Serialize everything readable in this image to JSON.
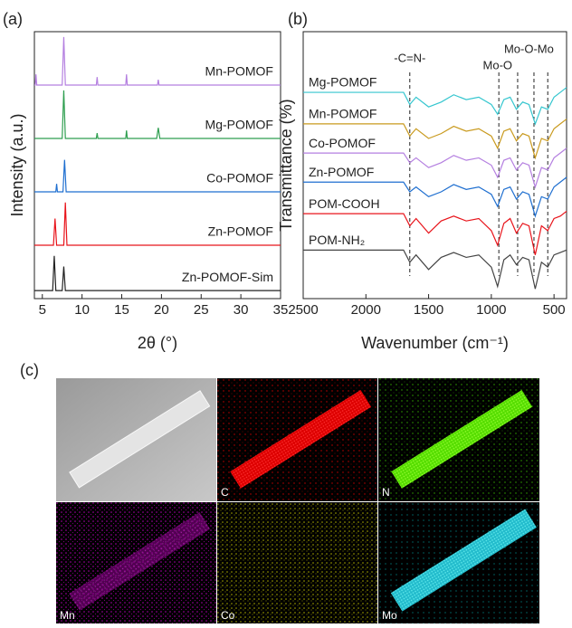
{
  "chart_data": [
    {
      "type": "line",
      "panel_label": "(a)",
      "xlabel": "2θ (°)",
      "ylabel": "Intensity (a.u.)",
      "xlim": [
        4,
        35
      ],
      "xticks": [
        5,
        10,
        15,
        20,
        25,
        30,
        35
      ],
      "ylim": [
        0,
        100
      ],
      "series": [
        {
          "name": "Zn-POMOF-Sim",
          "color": "#222222",
          "x": [
            4,
            6.3,
            6.5,
            6.7,
            7.5,
            7.7,
            7.9,
            35
          ],
          "values": [
            3,
            3,
            16,
            3,
            3,
            12,
            3,
            3
          ]
        },
        {
          "name": "Zn-POMOF",
          "color": "#e8141b",
          "x": [
            4,
            6.4,
            6.6,
            6.8,
            7.7,
            7.9,
            8.1,
            35
          ],
          "values": [
            20,
            20,
            30,
            20,
            20,
            36,
            20,
            20
          ]
        },
        {
          "name": "Co-POMOF",
          "color": "#1f6fd0",
          "x": [
            4,
            6.7,
            6.8,
            6.9,
            7.6,
            7.8,
            8,
            35
          ],
          "values": [
            40,
            40,
            43,
            40,
            40,
            52,
            40,
            40
          ]
        },
        {
          "name": "Mg-POMOF",
          "color": "#2e9e4f",
          "x": [
            4,
            7.5,
            7.7,
            7.9,
            11.8,
            11.9,
            12,
            15.5,
            15.6,
            15.7,
            19.4,
            19.6,
            19.8,
            35
          ],
          "values": [
            60,
            60,
            78,
            60,
            60,
            62,
            60,
            60,
            63,
            60,
            60,
            64,
            60,
            60
          ]
        },
        {
          "name": "Mn-POMOF",
          "color": "#b47fe0",
          "x": [
            4,
            4.1,
            4.2,
            4.3,
            7.5,
            7.7,
            7.9,
            11.8,
            11.9,
            12,
            15.5,
            15.6,
            15.7,
            19.5,
            19.6,
            19.7,
            35
          ],
          "values": [
            80,
            80,
            84,
            80,
            80,
            98,
            80,
            80,
            83,
            80,
            80,
            84,
            80,
            80,
            82,
            80,
            80
          ]
        }
      ]
    },
    {
      "type": "line",
      "panel_label": "(b)",
      "xlabel": "Wavenumber (cm⁻¹)",
      "ylabel": "Transmittance (%)",
      "xlim": [
        2500,
        400
      ],
      "xticks": [
        2500,
        2000,
        1500,
        1000,
        500
      ],
      "ylim": [
        -10,
        100
      ],
      "vlines": [
        1650,
        940,
        790,
        660,
        550
      ],
      "annotations": [
        {
          "text": "-C=N-",
          "x": 1650
        },
        {
          "text": "Mo-O",
          "x": 950
        },
        {
          "text": "Mo-O-Mo",
          "x": 700
        }
      ],
      "x": [
        2500,
        2200,
        1900,
        1700,
        1650,
        1600,
        1500,
        1400,
        1300,
        1200,
        1100,
        1000,
        950,
        900,
        850,
        800,
        750,
        700,
        650,
        600,
        550,
        500,
        450,
        400
      ],
      "series": [
        {
          "name": "POM-NH₂",
          "color": "#444444",
          "values": [
            10,
            10,
            10,
            10,
            5,
            8,
            2,
            7,
            9,
            7,
            8,
            3,
            -5,
            6,
            8,
            4,
            7,
            6,
            -6,
            5,
            3,
            8,
            9,
            10
          ]
        },
        {
          "name": "POM-COOH",
          "color": "#e8141b",
          "values": [
            25,
            25,
            25,
            25,
            20,
            23,
            17,
            22,
            24,
            22,
            23,
            18,
            12,
            21,
            23,
            17,
            21,
            20,
            8,
            20,
            18,
            23,
            24,
            26
          ]
        },
        {
          "name": "Zn-POMOF",
          "color": "#1f6fd0",
          "values": [
            38,
            38,
            38,
            38,
            34,
            36,
            32,
            34,
            37,
            35,
            36,
            33,
            28,
            35,
            36,
            31,
            34,
            33,
            24,
            32,
            31,
            36,
            38,
            40
          ]
        },
        {
          "name": "Co-POMOF",
          "color": "#b47fe0",
          "values": [
            50,
            50,
            50,
            50,
            46,
            48,
            44,
            46,
            49,
            47,
            48,
            45,
            40,
            47,
            48,
            43,
            46,
            45,
            36,
            44,
            43,
            48,
            50,
            52
          ]
        },
        {
          "name": "Mn-POMOF",
          "color": "#c99a1e",
          "values": [
            62,
            62,
            62,
            62,
            57,
            60,
            56,
            58,
            61,
            59,
            60,
            57,
            52,
            59,
            60,
            55,
            58,
            57,
            48,
            56,
            55,
            60,
            62,
            64
          ]
        },
        {
          "name": "Mg-POMOF",
          "color": "#35c6cf",
          "values": [
            75,
            75,
            75,
            75,
            70,
            73,
            69,
            71,
            74,
            72,
            73,
            70,
            66,
            72,
            73,
            68,
            71,
            70,
            62,
            69,
            68,
            73,
            75,
            77
          ]
        }
      ]
    }
  ],
  "panel_c": {
    "panel_label": "(c)",
    "tiles": [
      "C",
      "N",
      "Mn",
      "Co",
      "Mo"
    ]
  }
}
